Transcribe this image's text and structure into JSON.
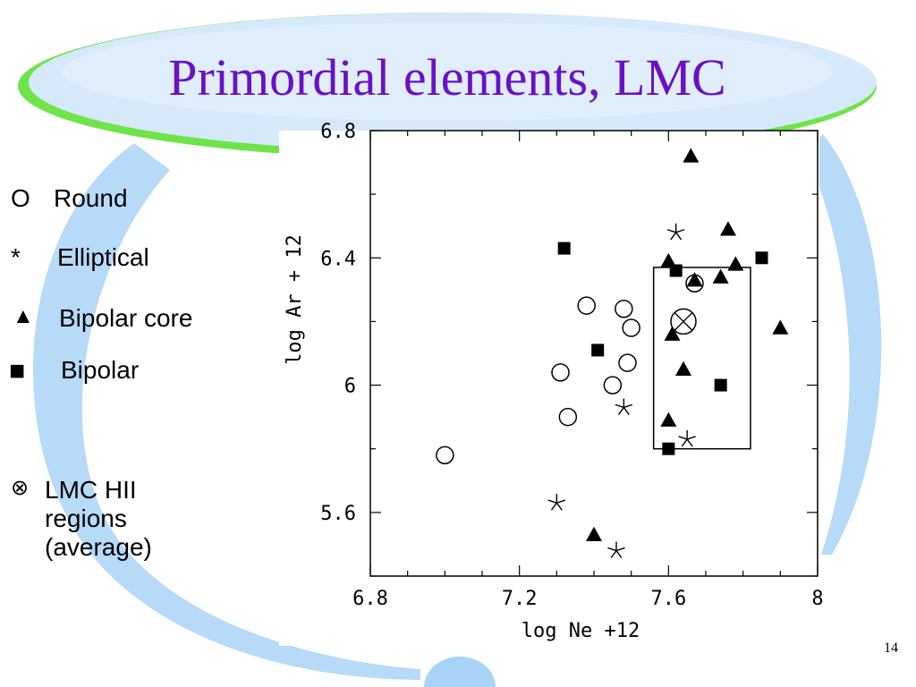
{
  "slide": {
    "title": "Primordial elements, LMC",
    "number": "14",
    "theme": {
      "title_color": "#6a10c8",
      "oval_color": "#d6e9fb",
      "oval_rim_color": "#6fe34a",
      "swoosh_color": "#a9d3f7"
    }
  },
  "legend": [
    {
      "symbol_name": "circle-icon",
      "symbol_text": "O",
      "label": "Round"
    },
    {
      "symbol_name": "asterisk-icon",
      "symbol_text": "*",
      "label": "Elliptical"
    },
    {
      "symbol_name": "triangle-icon",
      "symbol_text": "▲",
      "label": "Bipolar core"
    },
    {
      "symbol_name": "square-icon",
      "symbol_text": "■",
      "label": "Bipolar"
    },
    {
      "symbol_name": "circle-cross-icon",
      "symbol_text": "⊗",
      "label": "LMC HII regions (average)"
    }
  ],
  "chart_data": {
    "type": "scatter",
    "xlabel": "log Ne +12",
    "ylabel": "log Ar + 12",
    "xlim": [
      6.8,
      8.0
    ],
    "ylim": [
      5.4,
      6.8
    ],
    "xticks": [
      {
        "value": 6.8,
        "label": "6.8"
      },
      {
        "value": 7.2,
        "label": "7.2"
      },
      {
        "value": 7.6,
        "label": "7.6"
      },
      {
        "value": 8.0,
        "label": "8"
      }
    ],
    "yticks": [
      {
        "value": 5.6,
        "label": "5.6"
      },
      {
        "value": 6.0,
        "label": "6"
      },
      {
        "value": 6.4,
        "label": "6.4"
      },
      {
        "value": 6.8,
        "label": "6.8"
      }
    ],
    "grid": false,
    "series": [
      {
        "name": "Round",
        "marker": "circle",
        "points": [
          [
            7.0,
            5.78
          ],
          [
            7.33,
            5.9
          ],
          [
            7.31,
            6.04
          ],
          [
            7.38,
            6.25
          ],
          [
            7.45,
            6.0
          ],
          [
            7.48,
            6.24
          ],
          [
            7.49,
            6.07
          ],
          [
            7.5,
            6.18
          ],
          [
            7.67,
            6.32
          ]
        ]
      },
      {
        "name": "Elliptical",
        "marker": "asterisk",
        "points": [
          [
            7.3,
            5.63
          ],
          [
            7.46,
            5.48
          ],
          [
            7.48,
            5.93
          ],
          [
            7.62,
            6.48
          ],
          [
            7.65,
            5.83
          ]
        ]
      },
      {
        "name": "Bipolar core",
        "marker": "triangle",
        "points": [
          [
            7.66,
            6.72
          ],
          [
            7.6,
            6.39
          ],
          [
            7.67,
            6.33
          ],
          [
            7.74,
            6.34
          ],
          [
            7.76,
            6.49
          ],
          [
            7.78,
            6.38
          ],
          [
            7.61,
            6.16
          ],
          [
            7.64,
            6.05
          ],
          [
            7.6,
            5.89
          ],
          [
            7.4,
            5.53
          ],
          [
            7.9,
            6.18
          ]
        ]
      },
      {
        "name": "Bipolar",
        "marker": "square",
        "points": [
          [
            7.32,
            6.43
          ],
          [
            7.41,
            6.11
          ],
          [
            7.62,
            6.36
          ],
          [
            7.85,
            6.4
          ],
          [
            7.74,
            6.0
          ],
          [
            7.6,
            5.8
          ]
        ]
      },
      {
        "name": "LMC HII regions (average)",
        "marker": "circle-cross",
        "points": [
          [
            7.64,
            6.2
          ]
        ]
      }
    ],
    "annotation_box": {
      "x": [
        7.56,
        7.82
      ],
      "y": [
        5.8,
        6.37
      ]
    }
  }
}
